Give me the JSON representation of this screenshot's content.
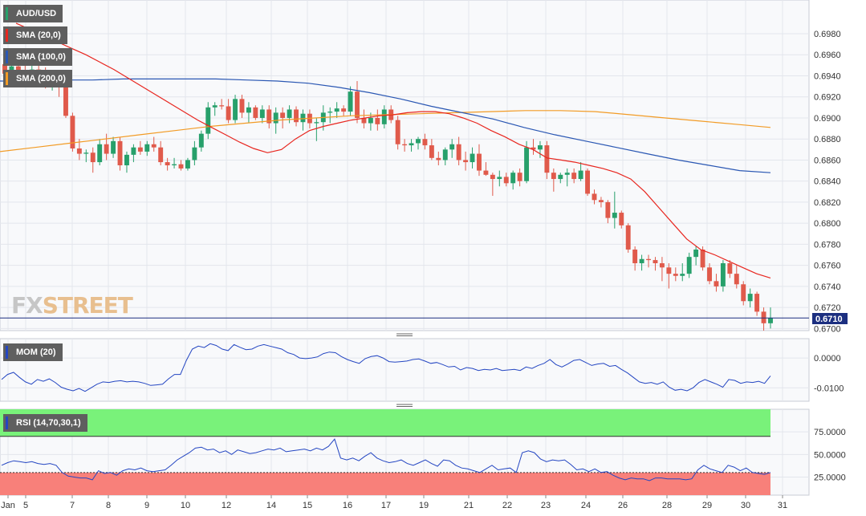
{
  "instrument": "AUD/USD",
  "colors": {
    "up": "#27a06b",
    "down": "#e05a4b",
    "sma20": "#e8261f",
    "sma100": "#2a57b3",
    "sma200": "#f29b25",
    "mom": "#2446c2",
    "rsi": "#2446c2",
    "rsi_top": "#79f27a",
    "rsi_bottom": "#f8807a",
    "last_line": "#1c2f80",
    "price_tag": "#1c2f80"
  },
  "legend": {
    "instrument": "AUD/USD",
    "sma20": "SMA (20,0)",
    "sma100": "SMA (100,0)",
    "sma200": "SMA (200,0)",
    "mom": "MOM (20)",
    "rsi": "RSI (14,70,30,1)"
  },
  "logo": {
    "part1": "FX",
    "part2": "STREET"
  },
  "last_price_label": "0.6710",
  "chart_data": [
    {
      "type": "candlestick",
      "title": "AUD/USD",
      "x_tick_labels": [
        "Jan",
        "5",
        "7",
        "8",
        "9",
        "10",
        "12",
        "14",
        "15",
        "16",
        "17",
        "19",
        "21",
        "22",
        "23",
        "24",
        "26",
        "28",
        "29",
        "30",
        "31"
      ],
      "y_tick_labels": [
        "0.6700",
        "0.6720",
        "0.6740",
        "0.6760",
        "0.6780",
        "0.6800",
        "0.6820",
        "0.6840",
        "0.6860",
        "0.6880",
        "0.6900",
        "0.6920",
        "0.6940",
        "0.6960",
        "0.6980"
      ],
      "ylim": [
        0.6698,
        0.7012
      ],
      "last_price": 0.671,
      "candles": [
        [
          0.6951,
          0.6957,
          0.6938,
          0.6942
        ],
        [
          0.6942,
          0.6955,
          0.6934,
          0.6949
        ],
        [
          0.6949,
          0.6962,
          0.694,
          0.6944
        ],
        [
          0.6944,
          0.6958,
          0.6932,
          0.6938
        ],
        [
          0.6938,
          0.695,
          0.693,
          0.6946
        ],
        [
          0.6946,
          0.6955,
          0.6935,
          0.694
        ],
        [
          0.694,
          0.6948,
          0.6928,
          0.6934
        ],
        [
          0.6934,
          0.6944,
          0.6926,
          0.6938
        ],
        [
          0.6938,
          0.6944,
          0.692,
          0.6936
        ],
        [
          0.6936,
          0.694,
          0.69,
          0.6902
        ],
        [
          0.6902,
          0.6905,
          0.6868,
          0.6871
        ],
        [
          0.6871,
          0.688,
          0.686,
          0.6866
        ],
        [
          0.6866,
          0.687,
          0.6858,
          0.6867
        ],
        [
          0.6867,
          0.6872,
          0.6848,
          0.6858
        ],
        [
          0.6858,
          0.688,
          0.6855,
          0.6875
        ],
        [
          0.6875,
          0.6885,
          0.686,
          0.6866
        ],
        [
          0.6866,
          0.6882,
          0.6862,
          0.6878
        ],
        [
          0.6878,
          0.6882,
          0.685,
          0.6855
        ],
        [
          0.6855,
          0.6868,
          0.6848,
          0.6865
        ],
        [
          0.6865,
          0.6875,
          0.6858,
          0.6872
        ],
        [
          0.6872,
          0.6878,
          0.6865,
          0.6868
        ],
        [
          0.6868,
          0.6878,
          0.6864,
          0.6875
        ],
        [
          0.6875,
          0.6882,
          0.6868,
          0.6872
        ],
        [
          0.6872,
          0.6878,
          0.6855,
          0.6858
        ],
        [
          0.6858,
          0.6862,
          0.685,
          0.6855
        ],
        [
          0.6855,
          0.6862,
          0.6852,
          0.6856
        ],
        [
          0.6856,
          0.686,
          0.685,
          0.6852
        ],
        [
          0.6852,
          0.6862,
          0.685,
          0.686
        ],
        [
          0.686,
          0.6878,
          0.6855,
          0.6872
        ],
        [
          0.6872,
          0.6888,
          0.6868,
          0.6885
        ],
        [
          0.6885,
          0.6915,
          0.688,
          0.691
        ],
        [
          0.691,
          0.6915,
          0.6902,
          0.6912
        ],
        [
          0.6912,
          0.6918,
          0.6908,
          0.6911
        ],
        [
          0.6911,
          0.6918,
          0.6895,
          0.6898
        ],
        [
          0.6898,
          0.6922,
          0.6895,
          0.6918
        ],
        [
          0.6918,
          0.6922,
          0.69,
          0.6905
        ],
        [
          0.6905,
          0.6915,
          0.6895,
          0.691
        ],
        [
          0.691,
          0.6912,
          0.6898,
          0.69
        ],
        [
          0.69,
          0.6912,
          0.6895,
          0.6908
        ],
        [
          0.6908,
          0.6912,
          0.689,
          0.6895
        ],
        [
          0.6895,
          0.691,
          0.6885,
          0.6905
        ],
        [
          0.6905,
          0.691,
          0.689,
          0.69
        ],
        [
          0.69,
          0.6912,
          0.6895,
          0.6908
        ],
        [
          0.6908,
          0.6911,
          0.6892,
          0.6896
        ],
        [
          0.6896,
          0.6908,
          0.6888,
          0.6904
        ],
        [
          0.6904,
          0.6908,
          0.689,
          0.6895
        ],
        [
          0.6895,
          0.69,
          0.6878,
          0.6896
        ],
        [
          0.6896,
          0.6912,
          0.6888,
          0.6905
        ],
        [
          0.6905,
          0.691,
          0.6895,
          0.6906
        ],
        [
          0.6906,
          0.6915,
          0.69,
          0.6909
        ],
        [
          0.6909,
          0.6912,
          0.6902,
          0.6906
        ],
        [
          0.6906,
          0.693,
          0.6902,
          0.6925
        ],
        [
          0.6925,
          0.6935,
          0.6895,
          0.69
        ],
        [
          0.69,
          0.6908,
          0.689,
          0.6895
        ],
        [
          0.6895,
          0.6905,
          0.6888,
          0.69
        ],
        [
          0.69,
          0.6908,
          0.6888,
          0.6894
        ],
        [
          0.6894,
          0.6912,
          0.689,
          0.6908
        ],
        [
          0.6908,
          0.6912,
          0.6895,
          0.6898
        ],
        [
          0.6898,
          0.6902,
          0.687,
          0.6875
        ],
        [
          0.6875,
          0.688,
          0.6868,
          0.6874
        ],
        [
          0.6874,
          0.688,
          0.6868,
          0.6876
        ],
        [
          0.6876,
          0.6882,
          0.687,
          0.688
        ],
        [
          0.688,
          0.6885,
          0.687,
          0.6874
        ],
        [
          0.6874,
          0.688,
          0.686,
          0.6862
        ],
        [
          0.6862,
          0.6868,
          0.6855,
          0.686
        ],
        [
          0.686,
          0.6872,
          0.6855,
          0.687
        ],
        [
          0.687,
          0.688,
          0.6862,
          0.6875
        ],
        [
          0.6875,
          0.6882,
          0.6855,
          0.686
        ],
        [
          0.686,
          0.6868,
          0.685,
          0.6858
        ],
        [
          0.6858,
          0.6872,
          0.6852,
          0.6866
        ],
        [
          0.6866,
          0.6875,
          0.6845,
          0.685
        ],
        [
          0.685,
          0.6858,
          0.6845,
          0.6846
        ],
        [
          0.6846,
          0.6848,
          0.6826,
          0.6842
        ],
        [
          0.6842,
          0.685,
          0.6835,
          0.6844
        ],
        [
          0.6844,
          0.6848,
          0.6835,
          0.6838
        ],
        [
          0.6838,
          0.685,
          0.6832,
          0.6848
        ],
        [
          0.6848,
          0.6852,
          0.6835,
          0.684
        ],
        [
          0.684,
          0.6878,
          0.6838,
          0.6872
        ],
        [
          0.6872,
          0.688,
          0.6865,
          0.687
        ],
        [
          0.687,
          0.6878,
          0.6862,
          0.6874
        ],
        [
          0.6874,
          0.6878,
          0.6842,
          0.6848
        ],
        [
          0.6848,
          0.6852,
          0.683,
          0.6842
        ],
        [
          0.6842,
          0.6848,
          0.6838,
          0.6846
        ],
        [
          0.6846,
          0.6852,
          0.6835,
          0.6848
        ],
        [
          0.6848,
          0.6852,
          0.6838,
          0.6842
        ],
        [
          0.6842,
          0.6858,
          0.684,
          0.685
        ],
        [
          0.685,
          0.6852,
          0.6826,
          0.6828
        ],
        [
          0.6828,
          0.6832,
          0.6818,
          0.6822
        ],
        [
          0.6822,
          0.6825,
          0.6815,
          0.682
        ],
        [
          0.682,
          0.6822,
          0.68,
          0.6805
        ],
        [
          0.6805,
          0.683,
          0.6795,
          0.681
        ],
        [
          0.681,
          0.6812,
          0.6795,
          0.6798
        ],
        [
          0.6798,
          0.68,
          0.6772,
          0.6775
        ],
        [
          0.6775,
          0.6778,
          0.6755,
          0.6762
        ],
        [
          0.6762,
          0.677,
          0.6755,
          0.6766
        ],
        [
          0.6766,
          0.677,
          0.6758,
          0.6765
        ],
        [
          0.6765,
          0.6768,
          0.6755,
          0.6762
        ],
        [
          0.6762,
          0.6768,
          0.6745,
          0.6758
        ],
        [
          0.6758,
          0.6762,
          0.6738,
          0.6752
        ],
        [
          0.6752,
          0.6758,
          0.6745,
          0.675
        ],
        [
          0.675,
          0.6762,
          0.6745,
          0.6752
        ],
        [
          0.6752,
          0.6772,
          0.6748,
          0.6768
        ],
        [
          0.6768,
          0.6778,
          0.676,
          0.6775
        ],
        [
          0.6775,
          0.6778,
          0.6755,
          0.6758
        ],
        [
          0.6758,
          0.6762,
          0.6742,
          0.6745
        ],
        [
          0.6745,
          0.6752,
          0.6735,
          0.674
        ],
        [
          0.674,
          0.6765,
          0.6735,
          0.6762
        ],
        [
          0.6762,
          0.6765,
          0.6748,
          0.6752
        ],
        [
          0.6752,
          0.676,
          0.6738,
          0.6742
        ],
        [
          0.6742,
          0.6745,
          0.6722,
          0.6726
        ],
        [
          0.6726,
          0.6738,
          0.672,
          0.6733
        ],
        [
          0.6733,
          0.6735,
          0.6712,
          0.6716
        ],
        [
          0.6716,
          0.672,
          0.6698,
          0.6705
        ],
        [
          0.6705,
          0.672,
          0.67,
          0.671
        ]
      ],
      "sma20": [
        0.699,
        0.6984,
        0.6978,
        0.6972,
        0.6966,
        0.696,
        0.6953,
        0.6946,
        0.6938,
        0.693,
        0.6922,
        0.6914,
        0.6906,
        0.6898,
        0.6891,
        0.6884,
        0.6877,
        0.6871,
        0.6867,
        0.687,
        0.688,
        0.6888,
        0.6892,
        0.6895,
        0.6898,
        0.69,
        0.6902,
        0.6903,
        0.6905,
        0.6906,
        0.6906,
        0.6904,
        0.69,
        0.6895,
        0.6888,
        0.6882,
        0.6875,
        0.687,
        0.6862,
        0.686,
        0.6858,
        0.6855,
        0.6852,
        0.6848,
        0.6842,
        0.683,
        0.6815,
        0.68,
        0.6785,
        0.6775,
        0.677,
        0.6764,
        0.6758,
        0.6752,
        0.6748
      ],
      "sma100": [
        0.6935,
        0.6935,
        0.6936,
        0.6936,
        0.6937,
        0.6937,
        0.6937,
        0.6937,
        0.6936,
        0.6935,
        0.6933,
        0.6929,
        0.6924,
        0.6918,
        0.6911,
        0.6905,
        0.6899,
        0.6891,
        0.6884,
        0.6878,
        0.6872,
        0.6866,
        0.686,
        0.6855,
        0.685,
        0.6848
      ],
      "sma200": [
        0.6868,
        0.6872,
        0.6876,
        0.688,
        0.6884,
        0.6888,
        0.6892,
        0.6895,
        0.6898,
        0.69,
        0.6902,
        0.6903,
        0.6904,
        0.6905,
        0.6906,
        0.6907,
        0.6907,
        0.6906,
        0.6903,
        0.69,
        0.6897,
        0.6894,
        0.6891
      ]
    },
    {
      "type": "line",
      "title": "MOM (20)",
      "y_tick_labels": [
        "0.0000",
        "-0.0100"
      ],
      "ylim": [
        -0.0145,
        0.0065
      ],
      "values": [
        -0.0072,
        -0.0055,
        -0.0048,
        -0.0065,
        -0.008,
        -0.0088,
        -0.0072,
        -0.0078,
        -0.007,
        -0.0082,
        -0.0098,
        -0.0105,
        -0.011,
        -0.0102,
        -0.0112,
        -0.01,
        -0.0088,
        -0.008,
        -0.0082,
        -0.0078,
        -0.0076,
        -0.008,
        -0.0078,
        -0.008,
        -0.0085,
        -0.0092,
        -0.009,
        -0.0088,
        -0.007,
        -0.0055,
        -0.0055,
        -0.0008,
        0.003,
        0.004,
        0.0035,
        0.0048,
        0.0042,
        0.003,
        0.0025,
        0.0045,
        0.0036,
        0.0028,
        0.003,
        0.004,
        0.0045,
        0.004,
        0.0035,
        0.003,
        0.0018,
        0.0012,
        0.0,
        -0.0002,
        0.0,
        0.0004,
        0.0015,
        0.002,
        0.0018,
        0.0005,
        -0.0005,
        -0.0012,
        -0.0018,
        -0.0002,
        0.0005,
        0.0008,
        0.0,
        -0.0012,
        -0.0014,
        -0.0012,
        -0.001,
        -0.0005,
        -0.0003,
        -0.001,
        -0.0018,
        -0.0015,
        -0.0022,
        -0.003,
        -0.0028,
        -0.004,
        -0.0032,
        -0.0035,
        -0.0042,
        -0.0038,
        -0.004,
        -0.0035,
        -0.0042,
        -0.004,
        -0.0038,
        -0.0042,
        -0.003,
        -0.0035,
        -0.0025,
        -0.0018,
        -0.0005,
        -0.0022,
        -0.003,
        -0.002,
        -0.0008,
        -0.0005,
        -0.0015,
        -0.0025,
        -0.002,
        -0.0018,
        -0.0028,
        -0.0025,
        -0.0038,
        -0.005,
        -0.0065,
        -0.008,
        -0.0085,
        -0.0082,
        -0.0088,
        -0.008,
        -0.0098,
        -0.0108,
        -0.0105,
        -0.011,
        -0.01,
        -0.0082,
        -0.0072,
        -0.008,
        -0.0088,
        -0.0098,
        -0.0072,
        -0.0075,
        -0.0085,
        -0.008,
        -0.0082,
        -0.0078,
        -0.0085,
        -0.006
      ]
    },
    {
      "type": "line",
      "title": "RSI (14,70,30,1)",
      "y_tick_labels": [
        "75.0000",
        "50.0000",
        "25.0000"
      ],
      "ylim": [
        5,
        100
      ],
      "overbought": 70,
      "oversold": 30,
      "values": [
        38,
        41,
        43,
        42,
        41,
        42,
        40,
        39,
        40,
        38,
        30,
        26,
        25,
        24,
        24,
        22,
        32,
        29,
        30,
        27,
        32,
        34,
        33,
        35,
        32,
        31,
        32,
        33,
        38,
        44,
        48,
        52,
        57,
        58,
        55,
        56,
        52,
        54,
        50,
        55,
        53,
        51,
        52,
        54,
        56,
        55,
        57,
        53,
        54,
        55,
        56,
        54,
        57,
        55,
        59,
        67,
        46,
        44,
        46,
        43,
        48,
        52,
        46,
        43,
        41,
        42,
        44,
        40,
        38,
        41,
        44,
        40,
        37,
        44,
        43,
        38,
        35,
        34,
        32,
        30,
        34,
        38,
        33,
        34,
        35,
        30,
        52,
        54,
        52,
        45,
        42,
        44,
        43,
        44,
        39,
        33,
        34,
        31,
        34,
        30,
        31,
        27,
        24,
        22,
        24,
        23,
        23,
        21,
        24,
        24,
        23,
        23,
        23,
        22,
        23,
        33,
        38,
        34,
        32,
        30,
        38,
        36,
        32,
        35,
        30,
        29,
        28,
        30
      ]
    }
  ]
}
